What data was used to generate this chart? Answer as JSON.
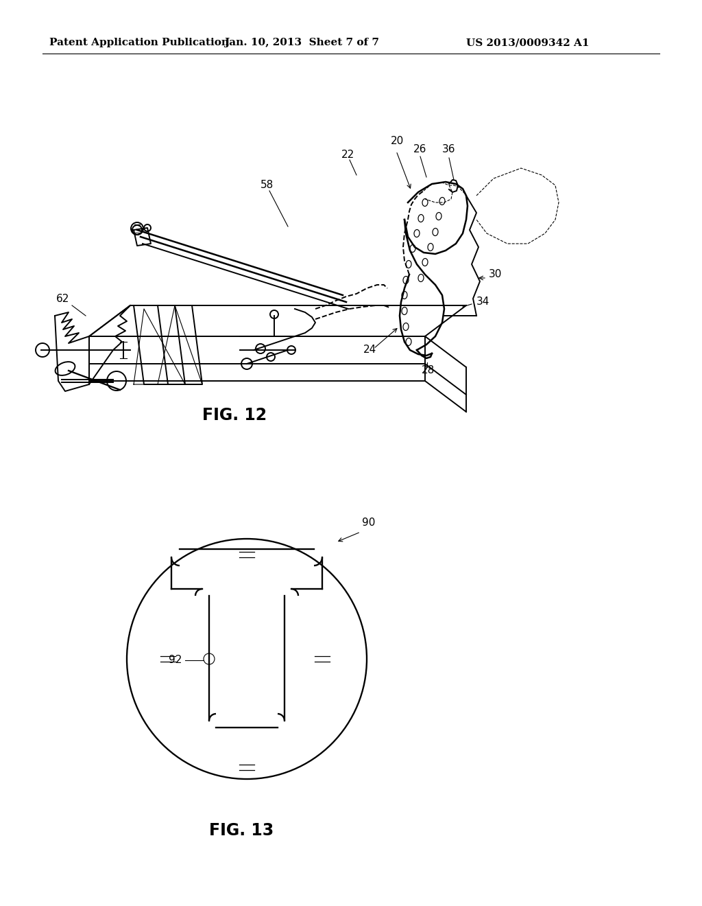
{
  "background_color": "#ffffff",
  "fig_width": 10.24,
  "fig_height": 13.2,
  "dpi": 100,
  "header_left": "Patent Application Publication",
  "header_center": "Jan. 10, 2013  Sheet 7 of 7",
  "header_right": "US 2013/0009342 A1",
  "line_color": "#000000",
  "line_width": 1.4,
  "thin_line": 0.8,
  "label_fontsize": 11,
  "fig_label_fontsize": 17
}
